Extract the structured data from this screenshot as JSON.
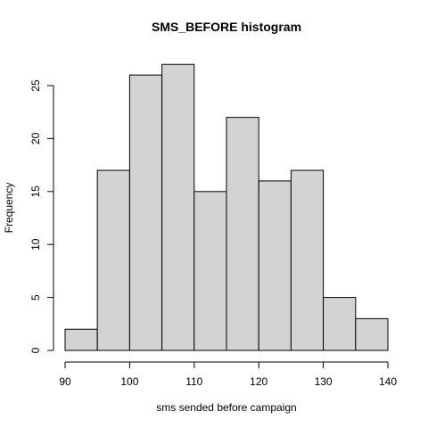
{
  "chart_data": {
    "type": "bar",
    "title": "SMS_BEFORE histogram",
    "xlabel": "sms sended before campaign",
    "ylabel": "Frequency",
    "bins": [
      {
        "from": 90,
        "to": 95,
        "count": 2
      },
      {
        "from": 95,
        "to": 100,
        "count": 17
      },
      {
        "from": 100,
        "to": 105,
        "count": 26
      },
      {
        "from": 105,
        "to": 110,
        "count": 27
      },
      {
        "from": 110,
        "to": 115,
        "count": 15
      },
      {
        "from": 115,
        "to": 120,
        "count": 22
      },
      {
        "from": 120,
        "to": 125,
        "count": 16
      },
      {
        "from": 125,
        "to": 130,
        "count": 17
      },
      {
        "from": 130,
        "to": 135,
        "count": 5
      },
      {
        "from": 135,
        "to": 140,
        "count": 3
      }
    ],
    "xlim": [
      90,
      140
    ],
    "ylim": [
      0,
      27
    ],
    "x_ticks": [
      "90",
      "100",
      "110",
      "120",
      "130",
      "140"
    ],
    "y_ticks": [
      "0",
      "5",
      "10",
      "15",
      "20",
      "25"
    ],
    "grid": false,
    "legend": "none",
    "bar_color": "#d3d3d3",
    "edge_color": "#000000"
  }
}
